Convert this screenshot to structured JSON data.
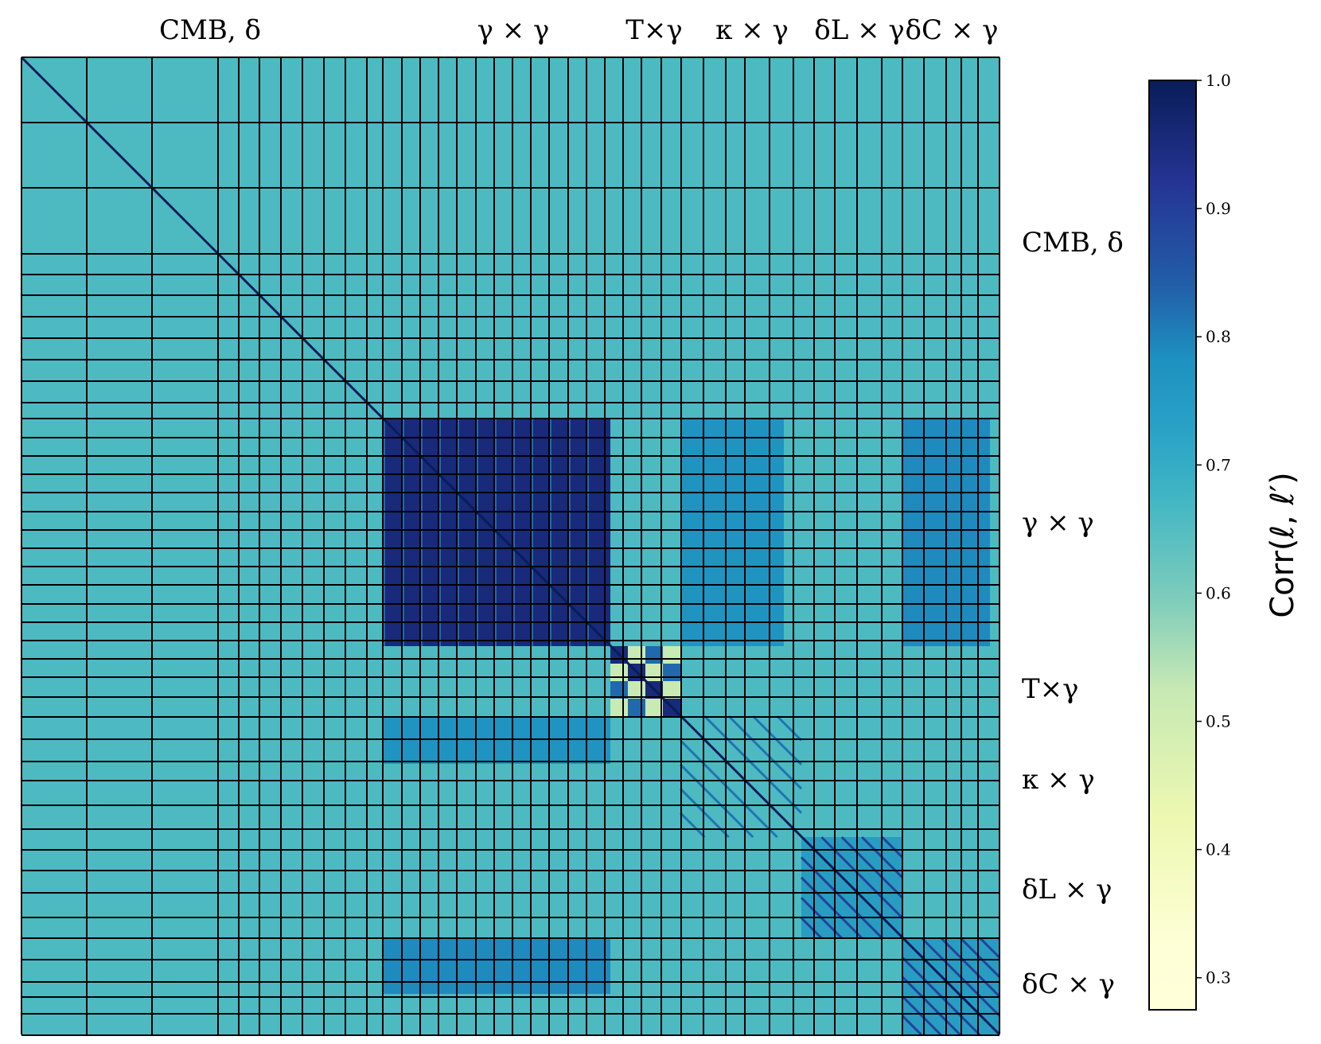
{
  "chart_data": {
    "type": "heatmap",
    "title": "",
    "colorbar": {
      "label": "Corr(ℓ, ℓ′)",
      "range": [
        0.275,
        1.0
      ],
      "ticks": [
        "0.3",
        "0.4",
        "0.5",
        "0.6",
        "0.7",
        "0.8",
        "0.9",
        "1.0"
      ],
      "tick_values": [
        0.3,
        0.4,
        0.5,
        0.6,
        0.7,
        0.8,
        0.9,
        1.0
      ],
      "colormap": "YlGnBu",
      "colormap_stops": [
        "#ffffd9",
        "#edf8b1",
        "#c7e9b4",
        "#7fcdbb",
        "#41b6c4",
        "#1d91c0",
        "#225ea8",
        "#253494",
        "#081d58"
      ]
    },
    "blocks": [
      {
        "label": "CMB, δ",
        "top_label": "CMB, δ",
        "side_label": "CMB, δ"
      },
      {
        "label": "γ × γ",
        "top_label": "γ × γ",
        "side_label": "γ × γ"
      },
      {
        "label": "T×γ",
        "top_label": "T×γ",
        "side_label": "T×γ"
      },
      {
        "label": "κ × γ",
        "top_label": "κ × γ",
        "side_label": "κ × γ"
      },
      {
        "label": "δL × γ",
        "top_label": "δL × γ",
        "side_label": "δL × γ"
      },
      {
        "label": "δC × γ",
        "top_label": "δC × γ",
        "side_label": "δC × γ"
      }
    ],
    "background_correlation": 0.62,
    "diagonal_correlation": 1.0,
    "gamma_gamma_block_correlation": 0.95,
    "gamma_gamma_offdiag_block_correlation": 0.8,
    "T_gamma_pattern_range": [
      0.4,
      1.0
    ],
    "kappa_gamma_diagonal_correlation": 0.78,
    "deltaL_gamma_diagonal_correlation": 0.88,
    "deltaC_gamma_diagonal_correlation": 0.88
  }
}
